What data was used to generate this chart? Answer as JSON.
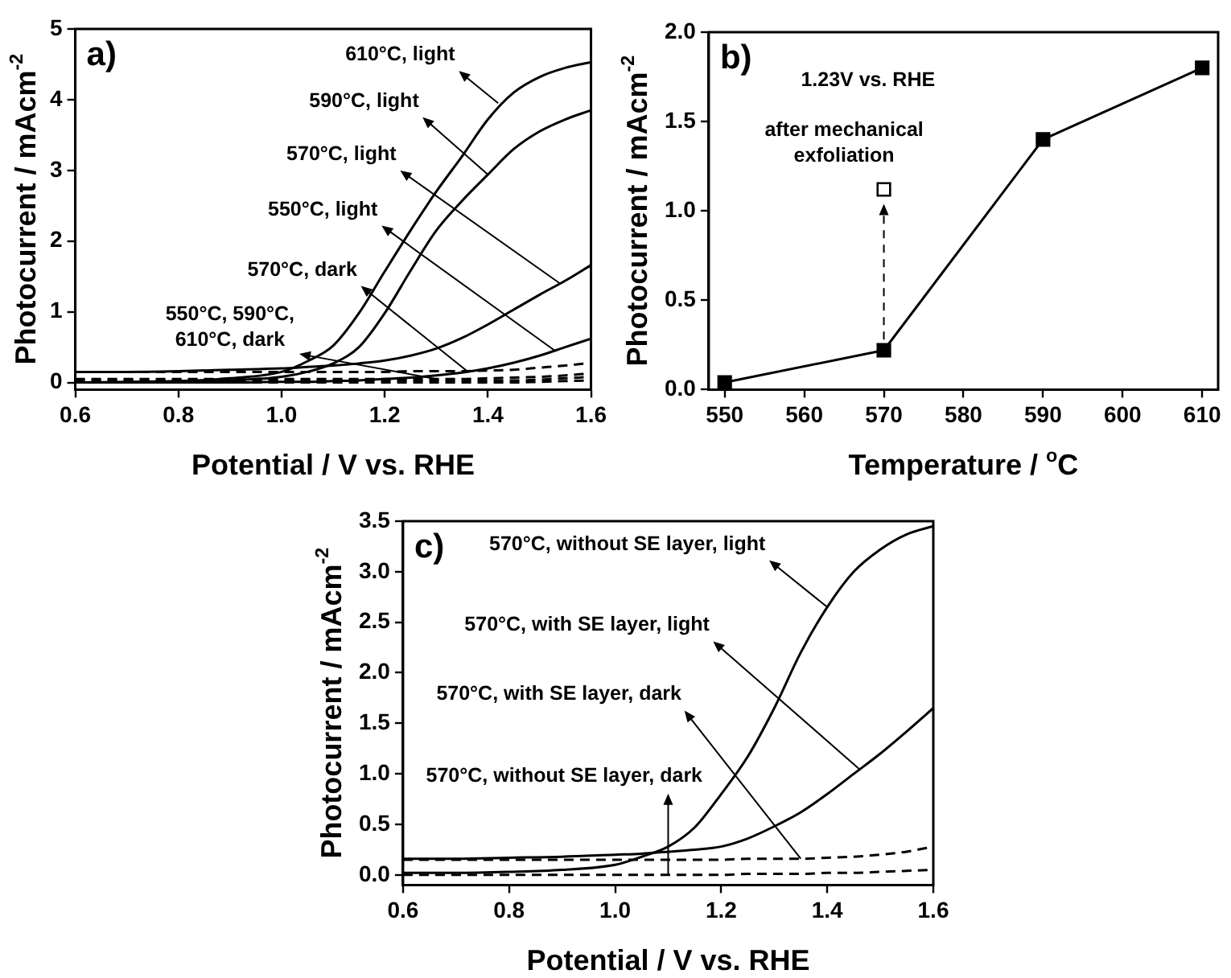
{
  "chart_data": [
    {
      "type": "line",
      "title": "a)",
      "xlabel": "Potential / V vs. RHE",
      "ylabel": "Photocurrent / mAcm$^{-2}$",
      "marker": "none",
      "x": [
        0.6,
        0.7,
        0.8,
        0.9,
        1.0,
        1.05,
        1.1,
        1.15,
        1.2,
        1.25,
        1.3,
        1.35,
        1.4,
        1.45,
        1.5,
        1.55,
        1.6
      ],
      "series": [
        {
          "color": "#000000",
          "line_style": "solid",
          "values": [
            0,
            0.01,
            0.02,
            0.06,
            0.15,
            0.3,
            0.52,
            0.98,
            1.57,
            2.15,
            2.7,
            3.2,
            3.72,
            4.1,
            4.32,
            4.45,
            4.53
          ]
        },
        {
          "color": "#000000",
          "line_style": "solid",
          "values": [
            0,
            0,
            0.01,
            0.03,
            0.08,
            0.15,
            0.27,
            0.5,
            0.98,
            1.58,
            2.15,
            2.57,
            2.94,
            3.3,
            3.55,
            3.72,
            3.85
          ]
        },
        {
          "color": "#000000",
          "line_style": "solid",
          "values": [
            0.15,
            0.15,
            0.16,
            0.18,
            0.2,
            0.22,
            0.24,
            0.27,
            0.31,
            0.38,
            0.48,
            0.63,
            0.82,
            1.03,
            1.24,
            1.44,
            1.66
          ]
        },
        {
          "color": "#000000",
          "line_style": "solid",
          "values": [
            0,
            0,
            0,
            0,
            0.01,
            0.01,
            0.02,
            0.03,
            0.05,
            0.07,
            0.1,
            0.14,
            0.2,
            0.28,
            0.38,
            0.5,
            0.62
          ]
        },
        {
          "color": "#000000",
          "line_style": "dashed",
          "values": [
            0.15,
            0.15,
            0.15,
            0.15,
            0.15,
            0.15,
            0.15,
            0.15,
            0.15,
            0.16,
            0.16,
            0.16,
            0.17,
            0.18,
            0.21,
            0.24,
            0.28
          ]
        },
        {
          "color": "#000000",
          "line_style": "dashed",
          "values": [
            0.05,
            0.05,
            0.05,
            0.05,
            0.05,
            0.05,
            0.05,
            0.05,
            0.05,
            0.05,
            0.05,
            0.05,
            0.06,
            0.07,
            0.08,
            0.1,
            0.13
          ]
        },
        {
          "color": "#000000",
          "line_style": "dashed",
          "values": [
            0.03,
            0.03,
            0.03,
            0.03,
            0.03,
            0.03,
            0.03,
            0.03,
            0.03,
            0.03,
            0.03,
            0.03,
            0.03,
            0.03,
            0.04,
            0.06,
            0.08
          ]
        },
        {
          "color": "#000000",
          "line_style": "dashed",
          "values": [
            0,
            0,
            0,
            0,
            0,
            0,
            0,
            0,
            0,
            0,
            0,
            0,
            0,
            0,
            0.01,
            0.02,
            0.03
          ]
        }
      ],
      "xlim": [
        0.6,
        1.6
      ],
      "xticks": [
        0.6,
        0.8,
        {
          "value": 1,
          "label": "1.0"
        },
        1.2,
        1.4,
        1.6
      ],
      "ylim": [
        -0.1,
        5
      ],
      "yticks": [
        0,
        1,
        2,
        3,
        4,
        5
      ],
      "annotations": [
        {
          "text": "610°C, light",
          "x": 1.42,
          "y": 3.95
        },
        {
          "text": "590°C, light",
          "x": 1.4,
          "y": 2.94
        },
        {
          "text": "570°C, light",
          "x": 1.54,
          "y": 1.4
        },
        {
          "text": "550°C, light",
          "x": 1.53,
          "y": 0.45
        },
        {
          "text": "570°C, dark",
          "x": 1.36,
          "y": 0.16
        },
        {
          "text": "550°C, 590°C, 610°C, dark",
          "x": 1.3,
          "y": 0.05
        }
      ]
    },
    {
      "type": "line",
      "title": "b)",
      "xlabel": "Temperature / $^{o}$C",
      "ylabel": "Photocurrent / mAcm$^{-2}$",
      "marker": "square",
      "series": [
        {
          "color": "#000000",
          "x": [
            550,
            570,
            590,
            610
          ],
          "values": [
            0.04,
            0.22,
            1.4,
            1.8
          ]
        },
        {
          "type": "scatter",
          "color": "#ffffff",
          "x": [
            570
          ],
          "values": [
            1.12
          ]
        }
      ],
      "xlim": [
        548,
        612
      ],
      "xticks": [
        550,
        560,
        570,
        580,
        590,
        600,
        610
      ],
      "ylim": [
        0,
        2
      ],
      "yticks": [
        {
          "value": 0,
          "label": "0.0"
        },
        0.5,
        {
          "value": 1,
          "label": "1.0"
        },
        1.5,
        {
          "value": 2,
          "label": "2.0"
        }
      ],
      "annotations": [
        "1.23V vs. RHE",
        {
          "text": "after mechanical exfoliation",
          "x": 570,
          "y": 1.12
        }
      ]
    },
    {
      "type": "line",
      "title": "c)",
      "xlabel": "Potential / V vs. RHE",
      "ylabel": "Photocurrent / mAcm$^{-2}$",
      "marker": "none",
      "x": [
        0.6,
        0.7,
        0.8,
        0.9,
        1.0,
        1.05,
        1.1,
        1.15,
        1.2,
        1.25,
        1.3,
        1.35,
        1.4,
        1.45,
        1.5,
        1.55,
        1.6
      ],
      "series": [
        {
          "color": "#000000",
          "line_style": "solid",
          "values": [
            0.02,
            0.02,
            0.03,
            0.05,
            0.1,
            0.18,
            0.28,
            0.47,
            0.8,
            1.17,
            1.65,
            2.2,
            2.65,
            3.0,
            3.22,
            3.37,
            3.45
          ]
        },
        {
          "color": "#000000",
          "line_style": "solid",
          "values": [
            0.16,
            0.16,
            0.17,
            0.18,
            0.2,
            0.21,
            0.23,
            0.25,
            0.28,
            0.36,
            0.48,
            0.62,
            0.8,
            1.0,
            1.2,
            1.42,
            1.65
          ]
        },
        {
          "color": "#000000",
          "line_style": "dashed",
          "values": [
            0.15,
            0.15,
            0.15,
            0.15,
            0.15,
            0.15,
            0.15,
            0.15,
            0.15,
            0.16,
            0.16,
            0.16,
            0.17,
            0.18,
            0.2,
            0.23,
            0.28
          ]
        },
        {
          "color": "#000000",
          "line_style": "dashed",
          "values": [
            0,
            0,
            0,
            0,
            0,
            0,
            0,
            0,
            0,
            0.01,
            0.01,
            0.01,
            0.02,
            0.02,
            0.03,
            0.04,
            0.05
          ]
        }
      ],
      "xlim": [
        0.6,
        1.6
      ],
      "xticks": [
        0.6,
        0.8,
        {
          "value": 1,
          "label": "1.0"
        },
        1.2,
        1.4,
        1.6
      ],
      "ylim": [
        -0.1,
        3.5
      ],
      "yticks": [
        {
          "value": 0,
          "label": "0.0"
        },
        0.5,
        {
          "value": 1,
          "label": "1.0"
        },
        1.5,
        {
          "value": 2,
          "label": "2.0"
        },
        2.5,
        {
          "value": 3,
          "label": "3.0"
        },
        3.5
      ],
      "annotations": [
        {
          "text": "570°C, without SE layer, light",
          "x": 1.4,
          "y": 2.65
        },
        {
          "text": "570°C, with SE layer, light",
          "x": 1.46,
          "y": 1.05
        },
        {
          "text": "570°C, with SE layer, dark",
          "x": 1.35,
          "y": 0.16
        },
        {
          "text": "570°C, without SE layer, dark",
          "x": 1.1,
          "y": 0
        }
      ]
    }
  ]
}
